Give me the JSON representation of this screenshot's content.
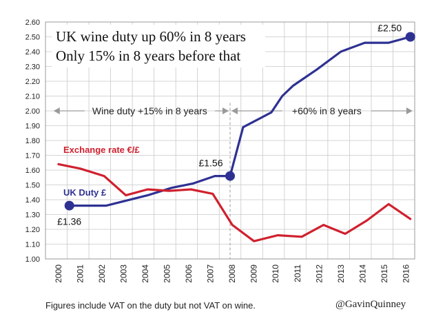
{
  "chart_data": {
    "type": "line",
    "title": "UK wine duty up 60% in 8 years",
    "subtitle": "Only 15% in 8 years before that",
    "categories": [
      "2000",
      "2001",
      "2002",
      "2003",
      "2004",
      "2005",
      "2006",
      "2007",
      "2008",
      "2009",
      "2010",
      "2011",
      "2012",
      "2013",
      "2014",
      "2015",
      "2016"
    ],
    "ylim": [
      1.0,
      2.6
    ],
    "yticks": [
      "1.00",
      "1.10",
      "1.20",
      "1.30",
      "1.40",
      "1.50",
      "1.60",
      "1.70",
      "1.80",
      "1.90",
      "2.00",
      "2.10",
      "2.20",
      "2.30",
      "2.40",
      "2.50",
      "2.60"
    ],
    "grid": true,
    "series": [
      {
        "name": "UK Duty £",
        "color": "#2e3192",
        "points": [
          [
            0.6,
            1.36
          ],
          [
            2.3,
            1.36
          ],
          [
            4.2,
            1.43
          ],
          [
            5.3,
            1.48
          ],
          [
            6.3,
            1.51
          ],
          [
            7.3,
            1.56
          ],
          [
            8.0,
            1.56
          ],
          [
            8.6,
            1.89
          ],
          [
            9.9,
            1.99
          ],
          [
            10.4,
            2.1
          ],
          [
            10.9,
            2.17
          ],
          [
            12.0,
            2.28
          ],
          [
            13.1,
            2.4
          ],
          [
            14.2,
            2.46
          ],
          [
            15.3,
            2.46
          ],
          [
            16.3,
            2.5
          ]
        ]
      },
      {
        "name": "Exchange rate €/£",
        "color": "#d0202e",
        "points": [
          [
            0.1,
            1.64
          ],
          [
            1.1,
            1.61
          ],
          [
            2.2,
            1.56
          ],
          [
            3.2,
            1.43
          ],
          [
            4.2,
            1.47
          ],
          [
            5.2,
            1.46
          ],
          [
            6.2,
            1.47
          ],
          [
            7.2,
            1.44
          ],
          [
            8.1,
            1.23
          ],
          [
            9.1,
            1.12
          ],
          [
            10.2,
            1.16
          ],
          [
            11.3,
            1.15
          ],
          [
            12.3,
            1.23
          ],
          [
            13.3,
            1.17
          ],
          [
            14.3,
            1.26
          ],
          [
            15.3,
            1.37
          ],
          [
            16.3,
            1.27
          ]
        ]
      }
    ],
    "markers": [
      {
        "label": "£1.36",
        "x": 0.6,
        "y": 1.36
      },
      {
        "label": "£1.56",
        "x": 8.0,
        "y": 1.56
      },
      {
        "label": "£2.50",
        "x": 16.3,
        "y": 2.5
      }
    ],
    "annotations": {
      "left_period": "Wine duty +15% in 8 years",
      "right_period": "+60% in 8 years",
      "period_divider_x": 8.0
    }
  },
  "footnote": "Figures include VAT on the duty but not VAT on wine.",
  "handle": "@GavinQuinney"
}
